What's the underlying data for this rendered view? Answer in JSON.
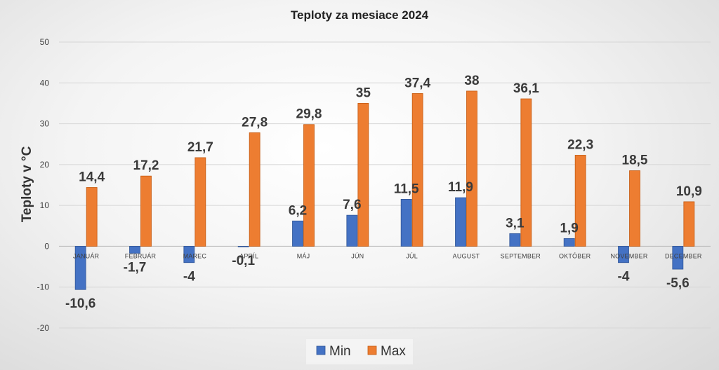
{
  "chart_data": {
    "type": "bar",
    "title": "Teploty za mesiace 2024",
    "xlabel": "",
    "ylabel": "Teploty v °C",
    "ylim": [
      -20,
      50
    ],
    "yticks": [
      -20,
      -10,
      0,
      10,
      20,
      30,
      40,
      50
    ],
    "grid": true,
    "legend_position": "bottom",
    "categories": [
      "JANUÁR",
      "FEBRUÁR",
      "MAREC",
      "APRÍL",
      "MÁJ",
      "JÚN",
      "JÚL",
      "AUGUST",
      "SEPTEMBER",
      "OKTÓBER",
      "NOVEMBER",
      "DECEMBER"
    ],
    "series": [
      {
        "name": "Min",
        "color": "#4472c4",
        "values": [
          -10.6,
          -1.7,
          -4,
          -0.1,
          6.2,
          7.6,
          11.5,
          11.9,
          3.1,
          1.9,
          -4,
          -5.6
        ],
        "labels": [
          "-10,6",
          "-1,7",
          "-4",
          "-0,1",
          "6,2",
          "7,6",
          "11,5",
          "11,9",
          "3,1",
          "1,9",
          "-4",
          "-5,6"
        ]
      },
      {
        "name": "Max",
        "color": "#ed7d31",
        "values": [
          14.4,
          17.2,
          21.7,
          27.8,
          29.8,
          35,
          37.4,
          38,
          36.1,
          22.3,
          18.5,
          10.9
        ],
        "labels": [
          "14,4",
          "17,2",
          "21,7",
          "27,8",
          "29,8",
          "35",
          "37,4",
          "38",
          "36,1",
          "22,3",
          "18,5",
          "10,9"
        ]
      }
    ]
  }
}
